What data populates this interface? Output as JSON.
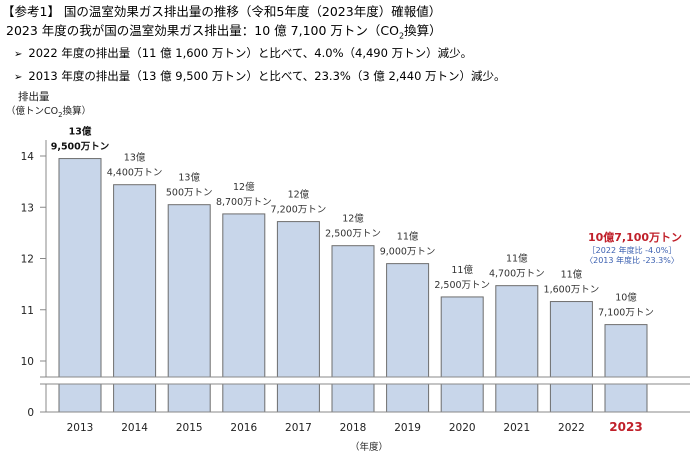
{
  "header": {
    "title": "【参考1】 国の温室効果ガス排出量の推移（令和5年度（2023年度）確報値）",
    "summary_pre": "2023 年度の我が国の温室効果ガス排出量：10 億 7,100 万トン（CO",
    "summary_sub": "2",
    "summary_post": "換算）",
    "bullets": [
      "2022 年度の排出量（11 億 1,600 万トン）と比べて、4.0%（4,490 万トン）減少。",
      "2013 年度の排出量（13 億 9,500 万トン）と比べて、23.3%（3 億 2,440 万トン）減少。"
    ]
  },
  "colors": {
    "bar_fill": "#c8d6ea",
    "bar_stroke": "#6d6d6d",
    "highlight": "#c0202a",
    "note_blue": "#3a5fb0"
  },
  "chart_data": {
    "type": "bar",
    "ylabel_line1": "排出量",
    "ylabel_line2_pre": "（億トンCO",
    "ylabel_line2_sub": "2",
    "ylabel_line2_post": "換算）",
    "xlabel": "（年度）",
    "categories": [
      "2013",
      "2014",
      "2015",
      "2016",
      "2017",
      "2018",
      "2019",
      "2020",
      "2021",
      "2022",
      "2023"
    ],
    "values": [
      13.95,
      13.44,
      13.05,
      12.87,
      12.72,
      12.25,
      11.9,
      11.25,
      11.47,
      11.16,
      10.71
    ],
    "labels_line1": [
      "13億",
      "13億",
      "13億",
      "12億",
      "12億",
      "12億",
      "11億",
      "11億",
      "11億",
      "11億",
      "10億"
    ],
    "labels_line2": [
      "9,500万トン",
      "4,400万トン",
      "500万トン",
      "8,700万トン",
      "7,200万トン",
      "2,500万トン",
      "9,000万トン",
      "2,500万トン",
      "4,700万トン",
      "1,600万トン",
      "7,100万トン"
    ],
    "highlight_label": "10億7,100万トン",
    "highlight_notes": [
      "［2022 年度比 -4.0%］",
      "〈2013 年度比 -23.3%〉"
    ],
    "yticks": [
      14,
      13,
      12,
      11,
      10,
      0
    ],
    "ylim": [
      0,
      14.5
    ],
    "axis_break": true,
    "grid": false
  }
}
